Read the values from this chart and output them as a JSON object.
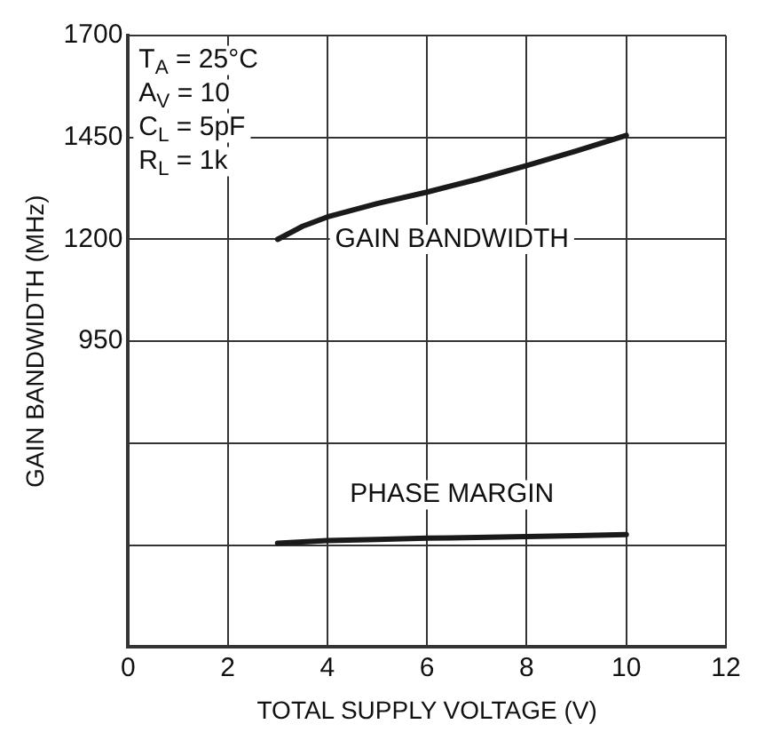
{
  "chart_data": {
    "type": "line",
    "xlabel": "TOTAL SUPPLY VOLTAGE (V)",
    "ylabel": "GAIN BANDWIDTH (MHz)",
    "x": [
      3,
      3.5,
      4,
      5,
      6,
      7,
      8,
      9,
      10
    ],
    "series": [
      {
        "color": "#1a1a1a",
        "values": [
          1200,
          1232,
          1255,
          1288,
          1316,
          1347,
          1381,
          1417,
          1455
        ]
      },
      {
        "color": "#1a1a1a",
        "values": [
          455,
          458,
          461,
          464,
          467,
          469,
          471,
          473,
          476
        ]
      }
    ],
    "xlim": [
      0,
      12
    ],
    "xticks": [
      0,
      2,
      4,
      6,
      8,
      10,
      12
    ],
    "ylim": [
      200,
      1700
    ],
    "yticks": [
      {
        "value": 200,
        "label": null
      },
      {
        "value": 450,
        "label": null
      },
      {
        "value": 700,
        "label": null
      },
      950,
      1200,
      1450,
      1700
    ],
    "grid": true,
    "legend": false,
    "marker": "none",
    "line_style": "solid",
    "annotations": [
      "T$_{A}$ = 25°C",
      "A$_{V}$ = 10",
      "C$_{L}$ = 5pF",
      "R$_{L}$ = 1k",
      "GAIN BANDWIDTH",
      "PHASE MARGIN"
    ]
  }
}
